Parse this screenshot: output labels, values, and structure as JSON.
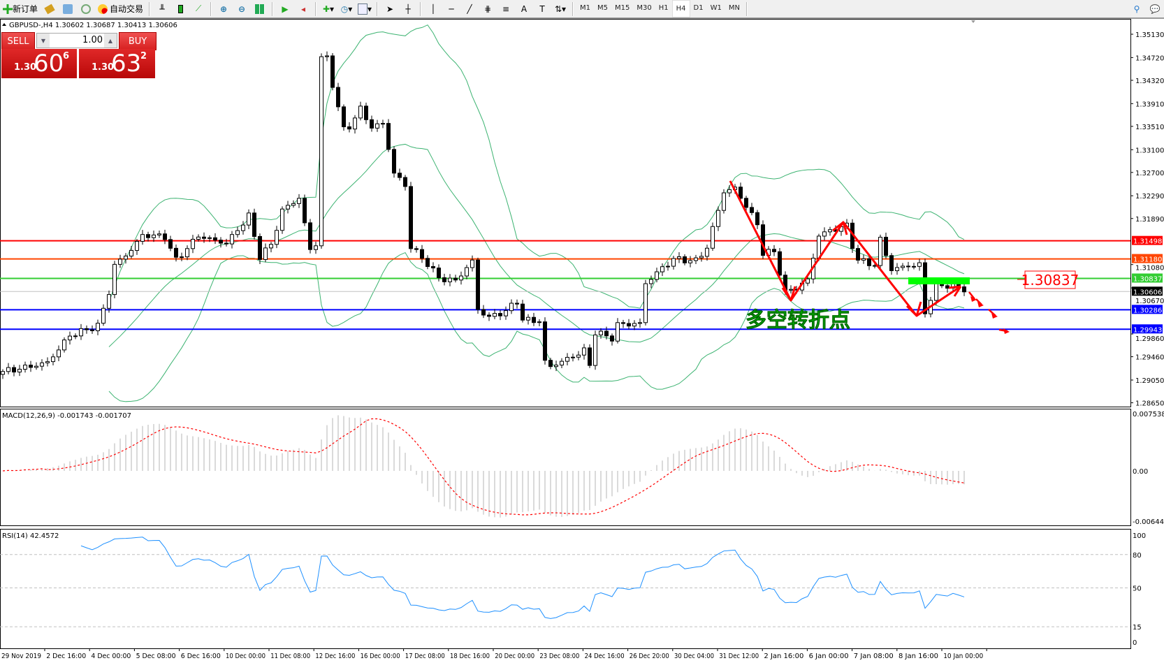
{
  "toolbar": {
    "new_order": "新订单",
    "auto_trading": "自动交易",
    "timeframes": [
      "M1",
      "M5",
      "M15",
      "M30",
      "H1",
      "H4",
      "D1",
      "W1",
      "MN"
    ],
    "active_timeframe": "H4",
    "icons": [
      "new-order-icon",
      "history-icon",
      "terminal-icon",
      "signal-icon",
      "auto-trading-icon",
      "bar-chart-icon",
      "candlestick-icon",
      "line-chart-icon",
      "zoom-in-icon",
      "zoom-out-icon",
      "tile-windows-icon",
      "auto-scroll-icon",
      "chart-shift-icon",
      "indicators-icon",
      "periods-icon",
      "templates-icon",
      "cursor-icon",
      "crosshair-icon",
      "vertical-line-icon",
      "horizontal-line-icon",
      "trendline-icon",
      "fibonacci-icon",
      "fibo-fan-icon",
      "text-icon",
      "text-label-icon",
      "arrows-icon",
      "search-icon",
      "chat-icon"
    ]
  },
  "chart_header": "GBPUSD-,H4  1.30602 1.30687 1.30413 1.30606",
  "trade_panel": {
    "sell_label": "SELL",
    "buy_label": "BUY",
    "lot": "1.00",
    "bid": {
      "prefix": "1.30",
      "big": "60",
      "sup": "6"
    },
    "ask": {
      "prefix": "1.30",
      "big": "63",
      "sup": "2"
    }
  },
  "annotation_text": "多空转折点",
  "annotation_price_label": "1.30837",
  "chart_data": [
    {
      "type": "candlestick",
      "symbol": "GBPUSD-",
      "timeframe": "H4",
      "ohlc_last": {
        "open": 1.30602,
        "high": 1.30687,
        "low": 1.30413,
        "close": 1.30606
      },
      "close_keypoints": [
        [
          0,
          1.292
        ],
        [
          8,
          1.294
        ],
        [
          12,
          1.2986
        ],
        [
          17,
          1.2999
        ],
        [
          19,
          1.3057
        ],
        [
          20,
          1.3103
        ],
        [
          23,
          1.313
        ],
        [
          25,
          1.3156
        ],
        [
          29,
          1.3156
        ],
        [
          31,
          1.3116
        ],
        [
          35,
          1.3162
        ],
        [
          40,
          1.3149
        ],
        [
          44,
          1.3195
        ],
        [
          46,
          1.3122
        ],
        [
          48,
          1.3141
        ],
        [
          50,
          1.32
        ],
        [
          53,
          1.3221
        ],
        [
          55,
          1.313
        ],
        [
          56,
          1.3141
        ],
        [
          57,
          1.3469
        ],
        [
          58,
          1.3469
        ],
        [
          59,
          1.3423
        ],
        [
          61,
          1.3345
        ],
        [
          62,
          1.3352
        ],
        [
          64,
          1.3384
        ],
        [
          66,
          1.3353
        ],
        [
          68,
          1.336
        ],
        [
          70,
          1.3273
        ],
        [
          72,
          1.325
        ],
        [
          73,
          1.3142
        ],
        [
          76,
          1.311
        ],
        [
          78,
          1.3083
        ],
        [
          81,
          1.3076
        ],
        [
          84,
          1.311
        ],
        [
          85,
          1.3025
        ],
        [
          87,
          1.3012
        ],
        [
          90,
          1.3025
        ],
        [
          92,
          1.3044
        ],
        [
          93,
          1.3012
        ],
        [
          96,
          1.3012
        ],
        [
          97,
          1.294
        ],
        [
          98,
          1.2933
        ],
        [
          101,
          1.2946
        ],
        [
          104,
          1.2959
        ],
        [
          105,
          1.2933
        ],
        [
          106,
          1.299
        ],
        [
          109,
          1.2977
        ],
        [
          110,
          1.3
        ],
        [
          114,
          1.3
        ],
        [
          115,
          1.3071
        ],
        [
          117,
          1.309
        ],
        [
          120,
          1.3116
        ],
        [
          124,
          1.3116
        ],
        [
          126,
          1.3141
        ],
        [
          128,
          1.3208
        ],
        [
          129,
          1.324
        ],
        [
          131,
          1.3246
        ],
        [
          133,
          1.3214
        ],
        [
          135,
          1.3181
        ],
        [
          136,
          1.313
        ],
        [
          138,
          1.313
        ],
        [
          140,
          1.3057
        ],
        [
          142,
          1.3064
        ],
        [
          144,
          1.3077
        ],
        [
          146,
          1.3156
        ],
        [
          149,
          1.3168
        ],
        [
          151,
          1.3175
        ],
        [
          152,
          1.3141
        ],
        [
          153,
          1.3116
        ],
        [
          156,
          1.311
        ],
        [
          157,
          1.3155
        ],
        [
          159,
          1.3103
        ],
        [
          162,
          1.311
        ],
        [
          164,
          1.311
        ],
        [
          165,
          1.3025
        ],
        [
          166,
          1.3051
        ],
        [
          167,
          1.3071
        ],
        [
          170,
          1.3071
        ],
        [
          172,
          1.306
        ]
      ],
      "indicators": [
        "Bollinger Bands"
      ],
      "price_axis_ticks": [
        "1.35130",
        "1.34720",
        "1.34320",
        "1.33910",
        "1.33510",
        "1.33100",
        "1.32700",
        "1.32290",
        "1.31890",
        "1.31080",
        "1.30670",
        "1.29860",
        "1.29460",
        "1.29050",
        "1.28650"
      ],
      "ylim": [
        1.2861,
        1.354
      ],
      "horizontal_lines": [
        {
          "price": "1.31498",
          "color": "#ff0000"
        },
        {
          "price": "1.31180",
          "color": "#ff4500"
        },
        {
          "price": "1.30837",
          "color": "#32cd32"
        },
        {
          "price": "1.30606",
          "color": "#000000",
          "line_color": "#c0c0c0"
        },
        {
          "price": "1.30286",
          "color": "#0000ff"
        },
        {
          "price": "1.29943",
          "color": "#0000ff"
        }
      ],
      "x_tick_labels": [
        "29 Nov 2019",
        "2 Dec 16:00",
        "4 Dec 00:00",
        "5 Dec 08:00",
        "6 Dec 16:00",
        "10 Dec 00:00",
        "11 Dec 08:00",
        "12 Dec 16:00",
        "16 Dec 00:00",
        "17 Dec 08:00",
        "18 Dec 16:00",
        "20 Dec 00:00",
        "23 Dec 08:00",
        "24 Dec 16:00",
        "26 Dec 20:00",
        "30 Dec 04:00",
        "31 Dec 12:00",
        "2 Jan 16:00",
        "6 Jan 00:00",
        "7 Jan 08:00",
        "8 Jan 16:00",
        "10 Jan 00:00"
      ]
    },
    {
      "type": "bar",
      "title": "MACD(12,26,9) -0.001743 -0.001707",
      "y_ticks": [
        "0.007538",
        "0.00",
        "-0.006446"
      ],
      "ylim": [
        -0.006446,
        0.007538
      ],
      "colors": {
        "histogram": "#c0c0c0",
        "signal": "#ff0000"
      }
    },
    {
      "type": "line",
      "title": "RSI(14) 42.4572",
      "y_ticks": [
        "100",
        "80",
        "50",
        "15",
        "0"
      ],
      "levels": [
        80,
        50,
        15
      ],
      "ylim": [
        0,
        100
      ],
      "colors": {
        "line": "#1e90ff"
      }
    }
  ],
  "colors": {
    "bollinger": "#3cb371",
    "annotation": "#ff0000",
    "annotation_text": "#00e000"
  }
}
